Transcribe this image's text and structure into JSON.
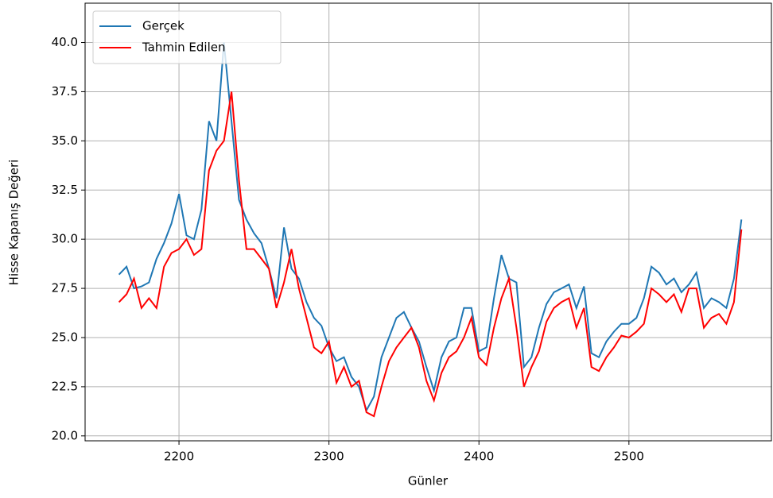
{
  "chart_data": {
    "type": "line",
    "xlabel": "Günler",
    "ylabel": "Hisse Kapanış Değeri",
    "x": [
      2160,
      2165,
      2170,
      2175,
      2180,
      2185,
      2190,
      2195,
      2200,
      2205,
      2210,
      2215,
      2220,
      2225,
      2230,
      2235,
      2240,
      2245,
      2250,
      2255,
      2260,
      2265,
      2270,
      2275,
      2280,
      2285,
      2290,
      2295,
      2300,
      2305,
      2310,
      2315,
      2320,
      2325,
      2330,
      2335,
      2340,
      2345,
      2350,
      2355,
      2360,
      2365,
      2370,
      2375,
      2380,
      2385,
      2390,
      2395,
      2400,
      2405,
      2410,
      2415,
      2420,
      2425,
      2430,
      2435,
      2440,
      2445,
      2450,
      2455,
      2460,
      2465,
      2470,
      2475,
      2480,
      2485,
      2490,
      2495,
      2500,
      2505,
      2510,
      2515,
      2520,
      2525,
      2530,
      2535,
      2540,
      2545,
      2550,
      2555,
      2560,
      2565,
      2570,
      2575
    ],
    "series": [
      {
        "name": "Gerçek",
        "color": "#1f77b4",
        "values": [
          28.2,
          28.6,
          27.5,
          27.6,
          27.8,
          29.0,
          29.8,
          30.8,
          32.3,
          30.2,
          30.0,
          31.5,
          36.0,
          35.0,
          40.0,
          36.0,
          32.0,
          31.0,
          30.3,
          29.8,
          28.5,
          27.0,
          30.6,
          28.5,
          28.0,
          26.8,
          26.0,
          25.6,
          24.5,
          23.8,
          24.0,
          23.0,
          22.5,
          21.3,
          22.0,
          24.0,
          25.0,
          26.0,
          26.3,
          25.5,
          24.8,
          23.5,
          22.3,
          24.0,
          24.8,
          25.0,
          26.5,
          26.5,
          24.3,
          24.5,
          27.0,
          29.2,
          28.0,
          27.8,
          23.5,
          24.0,
          25.5,
          26.7,
          27.3,
          27.5,
          27.7,
          26.5,
          27.6,
          24.2,
          24.0,
          24.8,
          25.3,
          25.7,
          25.7,
          26.0,
          27.0,
          28.6,
          28.3,
          27.7,
          28.0,
          27.3,
          27.7,
          28.3,
          26.5,
          27.0,
          26.8,
          26.5,
          28.0,
          31.0
        ]
      },
      {
        "name": "Tahmin Edilen",
        "color": "#ff0000",
        "values": [
          26.8,
          27.2,
          28.0,
          26.5,
          27.0,
          26.5,
          28.6,
          29.3,
          29.5,
          30.0,
          29.2,
          29.5,
          33.5,
          34.5,
          35.0,
          37.5,
          33.0,
          29.5,
          29.5,
          29.0,
          28.5,
          26.5,
          27.8,
          29.5,
          27.5,
          26.0,
          24.5,
          24.2,
          24.8,
          22.7,
          23.5,
          22.5,
          22.8,
          21.2,
          21.0,
          22.5,
          23.8,
          24.5,
          25.0,
          25.5,
          24.5,
          22.8,
          21.8,
          23.2,
          24.0,
          24.3,
          25.0,
          26.0,
          24.0,
          23.6,
          25.5,
          27.0,
          28.0,
          25.5,
          22.5,
          23.5,
          24.3,
          25.8,
          26.5,
          26.8,
          27.0,
          25.5,
          26.5,
          23.5,
          23.3,
          24.0,
          24.5,
          25.1,
          25.0,
          25.3,
          25.7,
          27.5,
          27.2,
          26.8,
          27.2,
          26.3,
          27.5,
          27.5,
          25.5,
          26.0,
          26.2,
          25.7,
          26.8,
          30.5
        ]
      }
    ],
    "xlim": [
      2137.4,
      2595
    ],
    "ylim": [
      19.75,
      42.0
    ],
    "xticks": [
      2200,
      2300,
      2400,
      2500
    ],
    "yticks": [
      {
        "value": 20,
        "label": "20.0"
      },
      22.5,
      {
        "value": 25,
        "label": "25.0"
      },
      27.5,
      {
        "value": 30,
        "label": "30.0"
      },
      32.5,
      {
        "value": 35,
        "label": "35.0"
      },
      37.5,
      {
        "value": 40,
        "label": "40.0"
      }
    ],
    "grid": true,
    "legend": "upper-left"
  }
}
